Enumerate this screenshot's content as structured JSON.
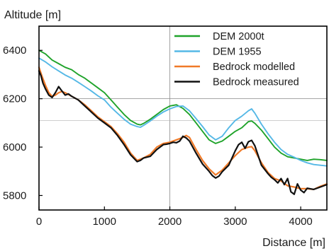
{
  "chart_data": {
    "type": "line",
    "title": "",
    "xlabel": "Distance [m]",
    "ylabel": "Altitude [m]",
    "xlim": [
      0,
      4400
    ],
    "ylim": [
      5740,
      6500
    ],
    "xticks": [
      0,
      1000,
      2000,
      3000,
      4000
    ],
    "yticks": [
      5800,
      6000,
      6200,
      6400
    ],
    "grid": "partial",
    "legend_position": "top-right",
    "series": [
      {
        "name": "DEM 2000t",
        "color": "#1fa32a",
        "x": [
          0,
          100,
          200,
          300,
          400,
          500,
          600,
          700,
          800,
          900,
          1000,
          1100,
          1200,
          1300,
          1400,
          1500,
          1550,
          1600,
          1700,
          1800,
          1900,
          2000,
          2100,
          2200,
          2300,
          2400,
          2500,
          2600,
          2700,
          2800,
          2900,
          3000,
          3100,
          3200,
          3250,
          3300,
          3400,
          3500,
          3600,
          3700,
          3800,
          3900,
          4000,
          4100,
          4200,
          4300,
          4400
        ],
        "y": [
          6400,
          6385,
          6360,
          6345,
          6330,
          6320,
          6300,
          6285,
          6265,
          6245,
          6225,
          6195,
          6165,
          6135,
          6110,
          6095,
          6092,
          6098,
          6115,
          6135,
          6155,
          6170,
          6175,
          6160,
          6135,
          6100,
          6065,
          6030,
          6015,
          6025,
          6045,
          6065,
          6080,
          6105,
          6108,
          6098,
          6070,
          6035,
          6000,
          5975,
          5960,
          5955,
          5950,
          5945,
          5950,
          5948,
          5945
        ]
      },
      {
        "name": "DEM 1955",
        "color": "#55b8e6",
        "x": [
          0,
          100,
          200,
          300,
          400,
          500,
          600,
          700,
          800,
          900,
          1000,
          1100,
          1200,
          1300,
          1400,
          1500,
          1550,
          1600,
          1700,
          1800,
          1900,
          2000,
          2100,
          2200,
          2300,
          2400,
          2500,
          2600,
          2700,
          2800,
          2900,
          3000,
          3100,
          3200,
          3250,
          3300,
          3400,
          3500,
          3600,
          3700,
          3800,
          3900,
          4000,
          4100,
          4200,
          4300,
          4400
        ],
        "y": [
          6368,
          6352,
          6332,
          6315,
          6298,
          6285,
          6268,
          6250,
          6232,
          6212,
          6195,
          6165,
          6140,
          6115,
          6095,
          6085,
          6082,
          6090,
          6108,
          6128,
          6145,
          6158,
          6168,
          6170,
          6150,
          6118,
          6085,
          6050,
          6030,
          6045,
          6080,
          6110,
          6128,
          6150,
          6158,
          6140,
          6095,
          6055,
          6020,
          5990,
          5970,
          5958,
          5945,
          5935,
          5928,
          5925,
          5922
        ]
      },
      {
        "name": "Bedrock modelled",
        "color": "#f07a28",
        "x": [
          0,
          50,
          100,
          150,
          200,
          250,
          300,
          350,
          400,
          500,
          600,
          700,
          800,
          900,
          1000,
          1100,
          1200,
          1300,
          1400,
          1500,
          1600,
          1700,
          1800,
          1900,
          2000,
          2100,
          2200,
          2250,
          2300,
          2400,
          2500,
          2600,
          2700,
          2800,
          2900,
          3000,
          3100,
          3200,
          3250,
          3300,
          3400,
          3500,
          3600,
          3700,
          3800,
          3900,
          4000,
          4100,
          4200,
          4300,
          4400
        ],
        "y": [
          6330,
          6290,
          6255,
          6225,
          6210,
          6215,
          6225,
          6230,
          6225,
          6210,
          6195,
          6175,
          6150,
          6125,
          6105,
          6085,
          6055,
          6020,
          5975,
          5945,
          5955,
          5970,
          6000,
          6015,
          6020,
          6030,
          6040,
          6048,
          6040,
          5990,
          5945,
          5910,
          5885,
          5905,
          5935,
          5965,
          5990,
          6000,
          6002,
          5985,
          5935,
          5895,
          5870,
          5860,
          5840,
          5835,
          5828,
          5828,
          5825,
          5838,
          5848
        ]
      },
      {
        "name": "Bedrock measured",
        "color": "#111111",
        "x": [
          0,
          30,
          60,
          100,
          150,
          200,
          250,
          300,
          350,
          400,
          450,
          500,
          600,
          700,
          800,
          900,
          1000,
          1100,
          1200,
          1300,
          1400,
          1500,
          1550,
          1600,
          1700,
          1800,
          1900,
          1950,
          2000,
          2050,
          2100,
          2150,
          2200,
          2250,
          2300,
          2400,
          2500,
          2600,
          2650,
          2700,
          2750,
          2800,
          2900,
          3000,
          3050,
          3100,
          3150,
          3200,
          3250,
          3300,
          3350,
          3400,
          3500,
          3550,
          3600,
          3650,
          3700,
          3750,
          3800,
          3850,
          3900,
          3950,
          4000,
          4050,
          4100,
          4200,
          4300,
          4400
        ],
        "y": [
          6315,
          6295,
          6265,
          6240,
          6215,
          6205,
          6225,
          6250,
          6232,
          6215,
          6220,
          6210,
          6195,
          6170,
          6145,
          6120,
          6100,
          6080,
          6048,
          6010,
          5968,
          5940,
          5945,
          5955,
          5962,
          5990,
          6010,
          6012,
          6015,
          6020,
          6018,
          6025,
          6045,
          6038,
          6025,
          5975,
          5930,
          5900,
          5882,
          5872,
          5880,
          5898,
          5925,
          5985,
          6010,
          6020,
          5995,
          6022,
          6028,
          6005,
          5965,
          5925,
          5890,
          5875,
          5865,
          5852,
          5870,
          5845,
          5870,
          5815,
          5805,
          5848,
          5822,
          5812,
          5830,
          5825,
          5835,
          5845
        ]
      }
    ]
  }
}
